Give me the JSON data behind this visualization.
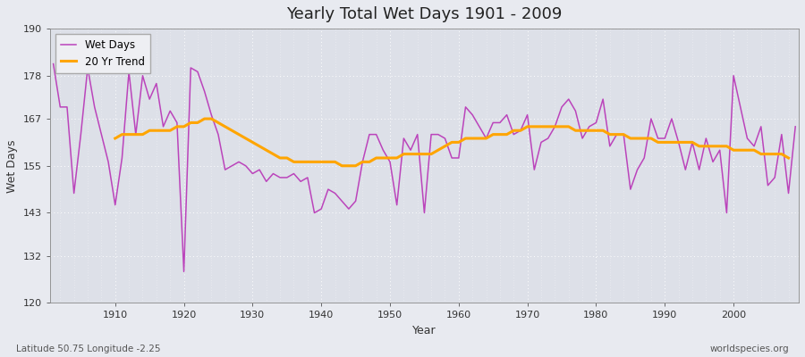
{
  "title": "Yearly Total Wet Days 1901 - 2009",
  "xlabel": "Year",
  "ylabel": "Wet Days",
  "lat_lon_label": "Latitude 50.75 Longitude -2.25",
  "source_label": "worldspecies.org",
  "ylim": [
    120,
    190
  ],
  "xlim": [
    1901,
    2009
  ],
  "yticks": [
    120,
    132,
    143,
    155,
    167,
    178,
    190
  ],
  "xticks": [
    1910,
    1920,
    1930,
    1940,
    1950,
    1960,
    1970,
    1980,
    1990,
    2000
  ],
  "wet_days_color": "#bb44bb",
  "trend_color": "#FFA500",
  "background_color": "#dde0e8",
  "figure_color": "#e8eaf0",
  "grid_color": "#ffffff",
  "wet_days_linewidth": 1.1,
  "trend_linewidth": 2.2,
  "years": [
    1901,
    1902,
    1903,
    1904,
    1905,
    1906,
    1907,
    1908,
    1909,
    1910,
    1911,
    1912,
    1913,
    1914,
    1915,
    1916,
    1917,
    1918,
    1919,
    1920,
    1921,
    1922,
    1923,
    1924,
    1925,
    1926,
    1927,
    1928,
    1929,
    1930,
    1931,
    1932,
    1933,
    1934,
    1935,
    1936,
    1937,
    1938,
    1939,
    1940,
    1941,
    1942,
    1943,
    1944,
    1945,
    1946,
    1947,
    1948,
    1949,
    1950,
    1951,
    1952,
    1953,
    1954,
    1955,
    1956,
    1957,
    1958,
    1959,
    1960,
    1961,
    1962,
    1963,
    1964,
    1965,
    1966,
    1967,
    1968,
    1969,
    1970,
    1971,
    1972,
    1973,
    1974,
    1975,
    1976,
    1977,
    1978,
    1979,
    1980,
    1981,
    1982,
    1983,
    1984,
    1985,
    1986,
    1987,
    1988,
    1989,
    1990,
    1991,
    1992,
    1993,
    1994,
    1995,
    1996,
    1997,
    1998,
    1999,
    2000,
    2001,
    2002,
    2003,
    2004,
    2005,
    2006,
    2007,
    2008,
    2009
  ],
  "wet_days": [
    181,
    170,
    170,
    148,
    163,
    180,
    170,
    163,
    156,
    145,
    157,
    179,
    163,
    178,
    172,
    176,
    165,
    169,
    166,
    128,
    180,
    179,
    174,
    168,
    163,
    154,
    155,
    156,
    155,
    153,
    154,
    151,
    153,
    152,
    152,
    153,
    151,
    152,
    143,
    144,
    149,
    148,
    146,
    144,
    146,
    156,
    163,
    163,
    159,
    156,
    145,
    162,
    159,
    163,
    143,
    163,
    163,
    162,
    157,
    157,
    170,
    168,
    165,
    162,
    166,
    166,
    168,
    163,
    164,
    168,
    154,
    161,
    162,
    165,
    170,
    172,
    169,
    162,
    165,
    166,
    172,
    160,
    163,
    163,
    149,
    154,
    157,
    167,
    162,
    162,
    167,
    161,
    154,
    161,
    154,
    162,
    156,
    159,
    143,
    178,
    170,
    162,
    160,
    165,
    150,
    152,
    163,
    148,
    165
  ],
  "trend": [
    null,
    null,
    null,
    null,
    null,
    null,
    null,
    null,
    null,
    162,
    163,
    163,
    163,
    163,
    164,
    164,
    164,
    164,
    165,
    165,
    166,
    166,
    167,
    167,
    166,
    165,
    164,
    163,
    162,
    161,
    160,
    159,
    158,
    157,
    157,
    156,
    156,
    156,
    156,
    156,
    156,
    156,
    155,
    155,
    155,
    156,
    156,
    157,
    157,
    157,
    157,
    158,
    158,
    158,
    158,
    158,
    159,
    160,
    161,
    161,
    162,
    162,
    162,
    162,
    163,
    163,
    163,
    164,
    164,
    165,
    165,
    165,
    165,
    165,
    165,
    165,
    164,
    164,
    164,
    164,
    164,
    163,
    163,
    163,
    162,
    162,
    162,
    162,
    161,
    161,
    161,
    161,
    161,
    161,
    160,
    160,
    160,
    160,
    160,
    159,
    159,
    159,
    159,
    158,
    158,
    158,
    158,
    157,
    null
  ]
}
